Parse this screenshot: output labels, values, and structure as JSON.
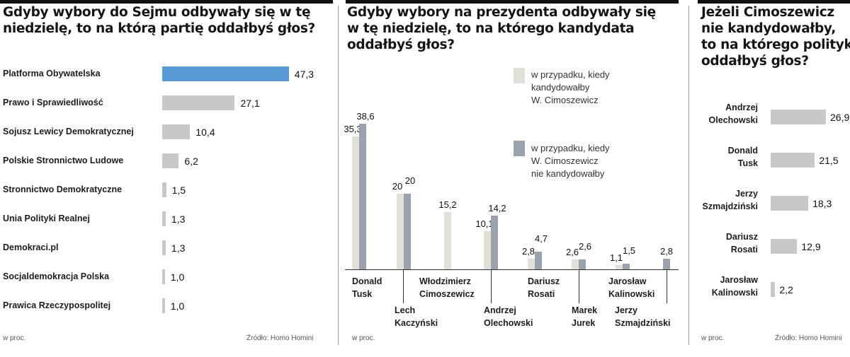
{
  "colors": {
    "highlight": "#5b9bd5",
    "bar_gray": "#c8c8c8",
    "light": "#e0e0d8",
    "dark": "#9aa3ad",
    "rule": "#111111"
  },
  "panels": {
    "sejm": {
      "title_lines": [
        "Gdyby wybory do Sejmu odbywały się w tę",
        "niedzielę, to na którą partię oddałbyś głos?"
      ],
      "unit": "w proc.",
      "source": "Źródło: Homo Homini"
    },
    "prezydent": {
      "title_lines": [
        "Gdyby wybory na prezydenta odbywały się",
        "w tę niedzielę, to na którego kandydata",
        "oddałbyś głos?"
      ],
      "unit": "w proc."
    },
    "cimoszewicz": {
      "title_lines": [
        "Jeżeli Cimoszewicz",
        "nie kandydowałby,",
        "to na którego polityka",
        "oddałbyś głos?"
      ],
      "unit": "w proc.",
      "source": "Źródło: Homo Homini"
    }
  },
  "chart_data": [
    {
      "type": "bar",
      "orientation": "horizontal",
      "categories": [
        "Platforma Obywatelska",
        "Prawo i Sprawiedliwość",
        "Sojusz Lewicy Demokratycznej",
        "Polskie Stronnictwo Ludowe",
        "Stronnictwo Demokratyczne",
        "Unia Polityki Realnej",
        "Demokraci.pl",
        "Socjaldemokracja Polska",
        "Prawica Rzeczypospolitej"
      ],
      "values": [
        47.3,
        27.1,
        10.4,
        6.2,
        1.5,
        1.3,
        1.3,
        1.0,
        1.0
      ],
      "value_labels": [
        "47,3",
        "27,1",
        "10,4",
        "6,2",
        "1,5",
        "1,3",
        "1,3",
        "1,0",
        "1,0"
      ],
      "highlight_index": 0,
      "title": "Gdyby wybory do Sejmu odbywały się w tę niedzielę, to na którą partię oddałbyś głos?",
      "xlim": [
        0,
        50
      ]
    },
    {
      "type": "bar",
      "orientation": "vertical",
      "categories": [
        {
          "lines": [
            "Donald",
            "Tusk"
          ]
        },
        {
          "lines": [
            "Lech",
            "Kaczyński"
          ]
        },
        {
          "lines": [
            "Włodzimierz",
            "Cimoszewicz"
          ]
        },
        {
          "lines": [
            "Andrzej",
            "Olechowski"
          ]
        },
        {
          "lines": [
            "Dariusz",
            "Rosati"
          ]
        },
        {
          "lines": [
            "Marek",
            "Jurek"
          ]
        },
        {
          "lines": [
            "Jarosław",
            "Kalinowski"
          ]
        },
        {
          "lines": [
            "Jerzy",
            "Szmajdziński"
          ]
        }
      ],
      "series": [
        {
          "name": "w przypadku, kiedy kandydowałby W. Cimoszewicz",
          "name_lines": [
            "w przypadku, kiedy",
            "kandydowałby",
            "W. Cimoszewicz"
          ],
          "values": [
            35.3,
            20,
            15.2,
            10.1,
            2.8,
            2.6,
            1.1,
            null
          ],
          "labels": [
            "35,3",
            "20",
            "15,2",
            "10,1",
            "2,8",
            "2,6",
            "1,1",
            ""
          ]
        },
        {
          "name": "w przypadku, kiedy W. Cimoszewicz nie kandydowałby",
          "name_lines": [
            "w przypadku, kiedy",
            "W. Cimoszewicz",
            "nie kandydowałby"
          ],
          "values": [
            38.6,
            20,
            null,
            14.2,
            4.7,
            2.6,
            1.5,
            2.8
          ],
          "labels": [
            "38,6",
            "20",
            "",
            "14,2",
            "4,7",
            "2,6",
            "1,5",
            "2,8"
          ]
        }
      ],
      "title": "Gdyby wybory na prezydenta odbywały się w tę niedzielę, to na którego kandydata oddałbyś głos?",
      "ylim": [
        0,
        40
      ]
    },
    {
      "type": "bar",
      "orientation": "horizontal",
      "categories": [
        {
          "lines": [
            "Andrzej",
            "Olechowski"
          ]
        },
        {
          "lines": [
            "Donald",
            "Tusk"
          ]
        },
        {
          "lines": [
            "Jerzy",
            "Szmajdziński"
          ]
        },
        {
          "lines": [
            "Dariusz",
            "Rosati"
          ]
        },
        {
          "lines": [
            "Jarosław",
            "Kalinowski"
          ]
        }
      ],
      "values": [
        26.9,
        21.5,
        18.3,
        12.9,
        2.2
      ],
      "value_labels": [
        "26,9",
        "21,5",
        "18,3",
        "12,9",
        "2,2"
      ],
      "title": "Jeżeli Cimoszewicz nie kandydowałby, to na którego polityka oddałbyś głos?",
      "xlim": [
        0,
        30
      ]
    }
  ]
}
